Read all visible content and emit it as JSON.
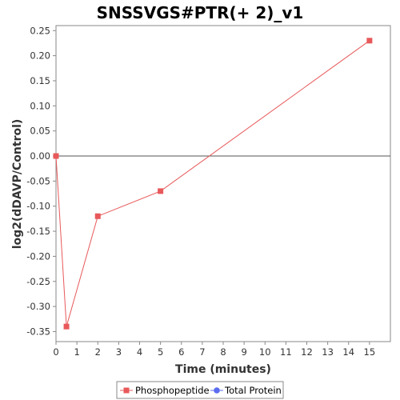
{
  "chart_data": {
    "type": "line",
    "title": "SNSSVGS#PTR(+ 2)_v1",
    "xlabel": "Time (minutes)",
    "ylabel": "log2(dDAVP/Control)",
    "xlim": [
      0,
      16
    ],
    "ylim": [
      -0.37,
      0.26
    ],
    "x_ticks": [
      0,
      1,
      2,
      3,
      4,
      5,
      6,
      7,
      8,
      9,
      10,
      11,
      12,
      13,
      14,
      15
    ],
    "y_ticks": [
      0.25,
      0.2,
      0.15,
      0.1,
      0.05,
      0.0,
      -0.05,
      -0.1,
      -0.15,
      -0.2,
      -0.25,
      -0.3,
      -0.35
    ],
    "y_tick_labels": [
      "0.25",
      "0.20",
      "0.15",
      "0.10",
      "0.05",
      "0.00",
      "-0.05",
      "-0.10",
      "-0.15",
      "-0.20",
      "-0.25",
      "-0.30",
      "-0.35"
    ],
    "zero_line": true,
    "grid": false,
    "legend_position": "bottom",
    "series": [
      {
        "name": "Phosphopeptide",
        "color": "#e8585a",
        "marker": "square",
        "x": [
          0,
          0.5,
          2,
          5,
          15
        ],
        "y": [
          0.0,
          -0.34,
          -0.12,
          -0.07,
          0.23
        ]
      },
      {
        "name": "Total Protein",
        "color": "#5b6cf0",
        "marker": "circle",
        "x": [],
        "y": []
      }
    ]
  }
}
